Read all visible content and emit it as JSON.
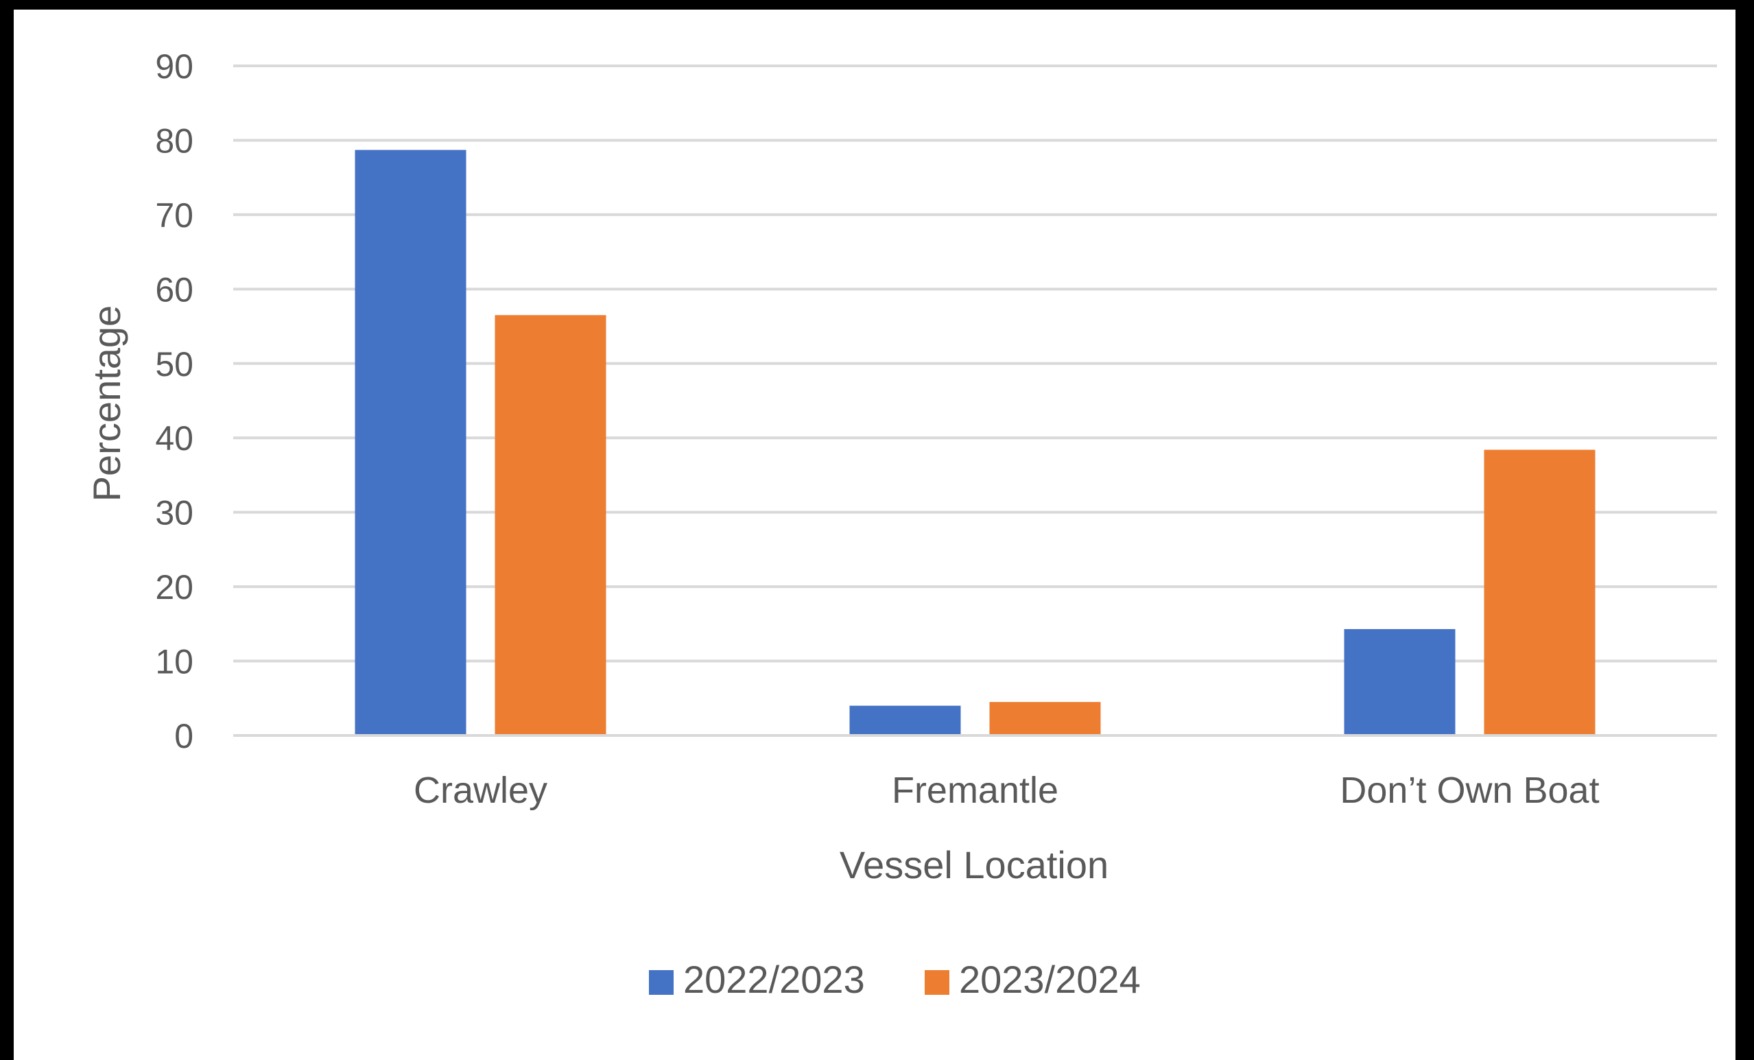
{
  "chart_data": {
    "type": "bar",
    "title": "",
    "xlabel": "Vessel Location",
    "ylabel": "Percentage",
    "ylim": [
      0,
      90
    ],
    "yticks": [
      0,
      10,
      20,
      30,
      40,
      50,
      60,
      70,
      80,
      90
    ],
    "grid": true,
    "legend_position": "bottom",
    "categories": [
      "Crawley",
      "Fremantle",
      "Don’t Own Boat"
    ],
    "series": [
      {
        "name": "2022/2023",
        "color": "#4472C4",
        "values": [
          78.7,
          4.0,
          14.3
        ]
      },
      {
        "name": "2023/2024",
        "color": "#ED7D31",
        "values": [
          56.5,
          4.5,
          38.4
        ]
      }
    ]
  }
}
